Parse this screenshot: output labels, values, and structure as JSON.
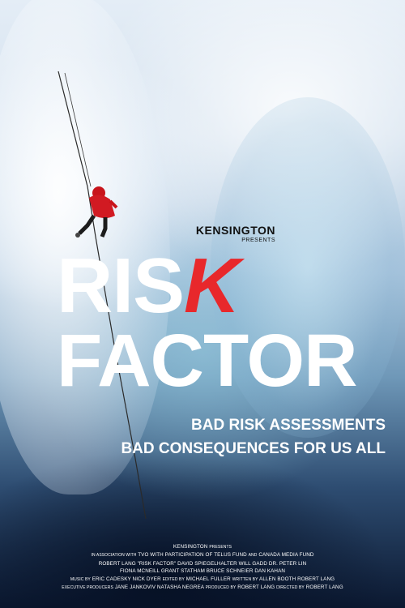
{
  "studio": {
    "logo": "KENSINGTON",
    "presents": "PRESENTS"
  },
  "title": {
    "part1": "RIS",
    "part1_highlight": "K",
    "part2": "FACTOR",
    "highlight_color": "#e8282b"
  },
  "tagline": {
    "line1": "BAD RISK ASSESSMENTS",
    "line2": "BAD CONSEQUENCES FOR US ALL"
  },
  "credits": {
    "line1": {
      "a": "KENSINGTON",
      "b": "PRESENTS"
    },
    "line2": {
      "a": "IN ASSOCIATION WITH",
      "b": "TVO WITH PARTICIPATION OF TELUS FUND",
      "c": "AND",
      "d": "CANADA MEDIA FUND"
    },
    "line3": "ROBERT LANG \"RISK FACTOR\" DAVID SPIEGELHALTER WILL GADD DR. PETER LIN",
    "line4": "FIONA MCNEILL GRANT STATHAM BRUCE SCHNEIER DAN KAHAN",
    "line5": {
      "music_label": "MUSIC BY",
      "music": "ERIC CADESKY NICK DYER",
      "edited_label": "EDITED BY",
      "edited": "MICHAEL FULLER",
      "written_label": "WRITTEN BY",
      "written": "ALLEN BOOTH ROBERT LANG"
    },
    "line6": {
      "exec_label": "EXECUTIVE PRODUCERS",
      "exec": "JANE JANKOVIV  NATASHA NEGREA",
      "produced_label": "PRODUCED BY",
      "produced": "ROBERT LANG",
      "directed_label": "DIRECTED BY",
      "directed": "ROBERT LANG"
    }
  }
}
